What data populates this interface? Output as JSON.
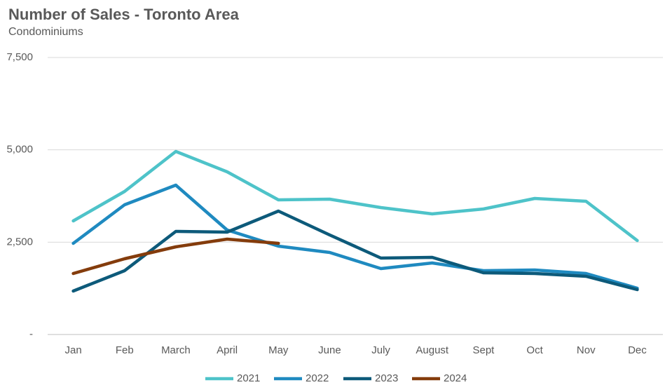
{
  "chart_data": {
    "type": "line",
    "title": "Number of Sales - Toronto Area",
    "subtitle": "Condominiums",
    "categories": [
      "Jan",
      "Feb",
      "March",
      "April",
      "May",
      "June",
      "July",
      "August",
      "Sept",
      "Oct",
      "Nov",
      "Dec"
    ],
    "series": [
      {
        "name": "2021",
        "color": "#4ec3c9",
        "values": [
          3076,
          3873,
          4955,
          4405,
          3645,
          3664,
          3436,
          3266,
          3398,
          3683,
          3607,
          2544
        ]
      },
      {
        "name": "2022",
        "color": "#1f8ac0",
        "values": [
          2468,
          3512,
          4044,
          2829,
          2392,
          2221,
          1785,
          1937,
          1728,
          1747,
          1652,
          1253
        ]
      },
      {
        "name": "2023",
        "color": "#0d5a7a",
        "values": [
          1177,
          1728,
          2791,
          2772,
          3342,
          2696,
          2070,
          2089,
          1671,
          1652,
          1576,
          1215
        ]
      },
      {
        "name": "2024",
        "color": "#843c0c",
        "values": [
          1652,
          2051,
          2373,
          2582,
          2468,
          null,
          null,
          null,
          null,
          null,
          null,
          null
        ]
      }
    ],
    "ylim": [
      0,
      7500
    ],
    "yticks": [
      {
        "value": 0,
        "label": "-"
      },
      {
        "value": 2500,
        "label": "2,500"
      },
      {
        "value": 5000,
        "label": "5,000"
      },
      {
        "value": 7500,
        "label": "7,500"
      }
    ],
    "grid": true,
    "legend": "bottom"
  }
}
